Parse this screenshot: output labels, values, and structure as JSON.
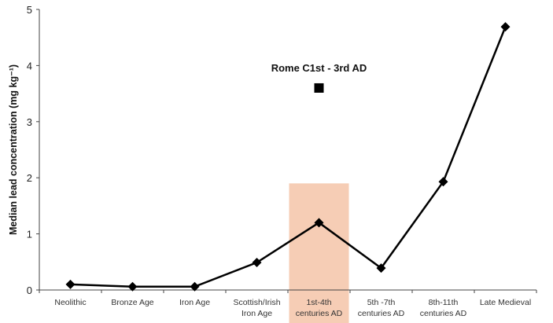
{
  "chart_data": {
    "type": "line",
    "title": "",
    "xlabel": "",
    "ylabel": "Median lead concentration (mg kg⁻¹)",
    "ylim": [
      0,
      5
    ],
    "yticks": [
      0,
      1,
      2,
      3,
      4,
      5
    ],
    "grid": false,
    "categories": [
      [
        "Neolithic"
      ],
      [
        "Bronze Age"
      ],
      [
        "Iron Age"
      ],
      [
        "Scottish/Irish",
        "Iron Age"
      ],
      [
        "1st-4th",
        "centuries AD"
      ],
      [
        "5th -7th",
        "centuries AD"
      ],
      [
        "8th-11th",
        "centuries AD"
      ],
      [
        "Late Medieval"
      ]
    ],
    "series": [
      {
        "values": [
          0.1,
          0.06,
          0.06,
          0.49,
          1.2,
          0.39,
          1.93,
          4.69
        ],
        "color": "#000000",
        "marker": "diamond"
      }
    ],
    "extra_point": {
      "label": "Rome C1st - 3rd AD",
      "category_index": 4,
      "value": 3.6,
      "marker": "square",
      "color": "#000000"
    },
    "highlight": {
      "category_index": 4,
      "upper_value": 1.9,
      "color": "#f6cdb5"
    }
  }
}
